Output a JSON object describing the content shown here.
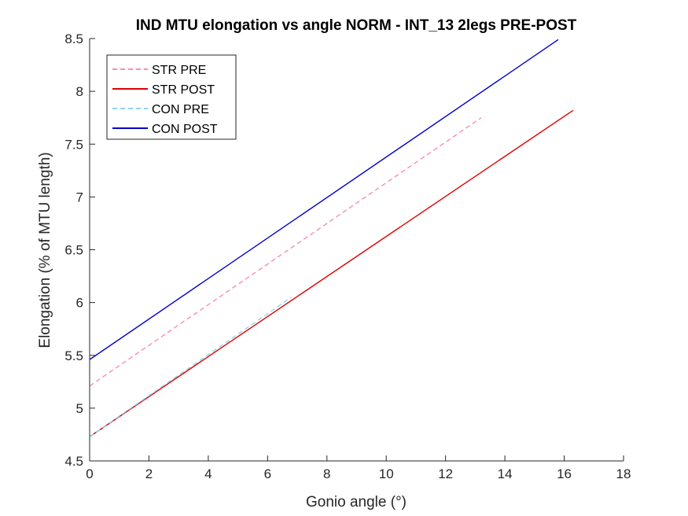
{
  "chart_data": {
    "type": "line",
    "title": "IND MTU elongation vs angle NORM - INT_13 2legs PRE-POST",
    "xlabel": "Gonio angle (°)",
    "ylabel": "Elongation (% of MTU length)",
    "xlim": [
      0,
      18
    ],
    "ylim": [
      4.5,
      8.5
    ],
    "xticks": [
      "0",
      "2",
      "4",
      "6",
      "8",
      "10",
      "12",
      "14",
      "16",
      "18"
    ],
    "yticks": [
      "4.5",
      "5",
      "5.5",
      "6",
      "6.5",
      "7",
      "7.5",
      "8",
      "8.5"
    ],
    "grid": false,
    "legend_position": "top-left",
    "series": [
      {
        "name": "STR PRE",
        "color": "#f48fb1",
        "dash": "dashed",
        "x": [
          0,
          13.2
        ],
        "y": [
          5.21,
          7.75
        ]
      },
      {
        "name": "STR POST",
        "color": "#dd0000",
        "dash": "solid",
        "x": [
          0,
          16.3
        ],
        "y": [
          4.73,
          7.82
        ]
      },
      {
        "name": "CON PRE",
        "color": "#8fd3f0",
        "dash": "dashed",
        "x": [
          0,
          6.8
        ],
        "y": [
          4.73,
          6.05
        ]
      },
      {
        "name": "CON POST",
        "color": "#0000cc",
        "dash": "solid",
        "x": [
          0,
          15.8
        ],
        "y": [
          5.46,
          8.49
        ]
      }
    ]
  }
}
